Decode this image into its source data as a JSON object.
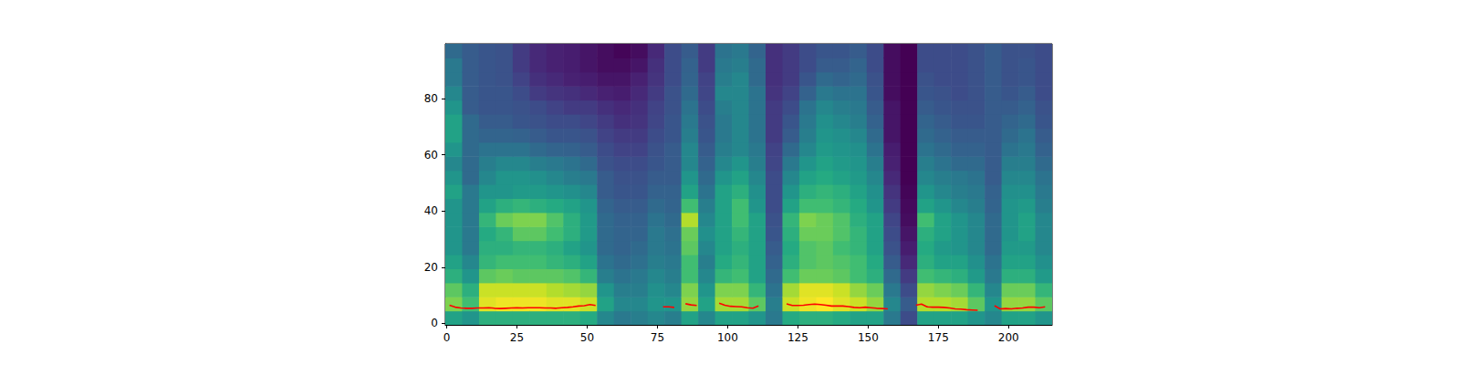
{
  "chart_data": {
    "type": "heatmap",
    "xlim": [
      -0.5,
      215.5
    ],
    "ylim": [
      -0.5,
      99.5
    ],
    "xticks": [
      0,
      25,
      50,
      75,
      100,
      125,
      150,
      175,
      200
    ],
    "yticks": [
      0,
      20,
      40,
      60,
      80
    ],
    "x_bins": [
      -0.5,
      5.5,
      11.5,
      17.5,
      23.5,
      29.5,
      35.5,
      41.5,
      47.5,
      53.5,
      59.5,
      65.5,
      71.5,
      77.5,
      83.5,
      89.5,
      95.5,
      101.5,
      107.5,
      113.5,
      119.5,
      125.5,
      131.5,
      137.5,
      143.5,
      149.5,
      155.5,
      161.5,
      167.5,
      173.5,
      179.5,
      185.5,
      191.5,
      197.5,
      203.5,
      209.5,
      215.5
    ],
    "y_bins": [
      -0.5,
      4.5,
      9.5,
      14.5,
      19.5,
      24.5,
      29.5,
      34.5,
      39.5,
      44.5,
      49.5,
      54.5,
      59.5,
      64.5,
      69.5,
      74.5,
      79.5,
      84.5,
      89.5,
      94.5,
      99.5
    ],
    "cells": [
      [
        0.55,
        0.75,
        0.7,
        0.6,
        0.55,
        0.5,
        0.5,
        0.5,
        0.5,
        0.55,
        0.5,
        0.45,
        0.5,
        0.55,
        0.55,
        0.5,
        0.45,
        0.4,
        0.4,
        0.35
      ],
      [
        0.5,
        0.65,
        0.6,
        0.5,
        0.45,
        0.4,
        0.4,
        0.4,
        0.4,
        0.4,
        0.35,
        0.35,
        0.35,
        0.35,
        0.35,
        0.3,
        0.3,
        0.3,
        0.3,
        0.3
      ],
      [
        0.6,
        0.88,
        0.85,
        0.7,
        0.62,
        0.6,
        0.58,
        0.62,
        0.55,
        0.5,
        0.45,
        0.42,
        0.38,
        0.33,
        0.3,
        0.28,
        0.28,
        0.28,
        0.28,
        0.28
      ],
      [
        0.6,
        0.9,
        0.85,
        0.72,
        0.65,
        0.6,
        0.62,
        0.72,
        0.6,
        0.5,
        0.5,
        0.45,
        0.38,
        0.33,
        0.3,
        0.28,
        0.28,
        0.27,
        0.27,
        0.27
      ],
      [
        0.6,
        0.9,
        0.85,
        0.7,
        0.65,
        0.62,
        0.7,
        0.75,
        0.62,
        0.52,
        0.5,
        0.45,
        0.38,
        0.32,
        0.28,
        0.27,
        0.25,
        0.22,
        0.2,
        0.2
      ],
      [
        0.6,
        0.9,
        0.85,
        0.7,
        0.65,
        0.62,
        0.7,
        0.75,
        0.6,
        0.52,
        0.48,
        0.42,
        0.35,
        0.3,
        0.27,
        0.25,
        0.2,
        0.17,
        0.15,
        0.15
      ],
      [
        0.6,
        0.88,
        0.82,
        0.7,
        0.62,
        0.6,
        0.65,
        0.68,
        0.58,
        0.5,
        0.45,
        0.4,
        0.33,
        0.28,
        0.25,
        0.22,
        0.18,
        0.15,
        0.13,
        0.13
      ],
      [
        0.6,
        0.88,
        0.8,
        0.68,
        0.6,
        0.55,
        0.6,
        0.6,
        0.55,
        0.48,
        0.42,
        0.38,
        0.32,
        0.28,
        0.25,
        0.2,
        0.17,
        0.13,
        0.12,
        0.12
      ],
      [
        0.58,
        0.85,
        0.78,
        0.62,
        0.55,
        0.5,
        0.52,
        0.52,
        0.5,
        0.45,
        0.4,
        0.35,
        0.3,
        0.27,
        0.23,
        0.2,
        0.15,
        0.12,
        0.1,
        0.1
      ],
      [
        0.45,
        0.55,
        0.5,
        0.42,
        0.38,
        0.35,
        0.35,
        0.35,
        0.33,
        0.3,
        0.3,
        0.27,
        0.25,
        0.22,
        0.2,
        0.17,
        0.13,
        0.1,
        0.08,
        0.08
      ],
      [
        0.4,
        0.45,
        0.42,
        0.38,
        0.35,
        0.33,
        0.33,
        0.32,
        0.3,
        0.28,
        0.27,
        0.25,
        0.22,
        0.2,
        0.17,
        0.15,
        0.12,
        0.1,
        0.08,
        0.06
      ],
      [
        0.42,
        0.45,
        0.42,
        0.4,
        0.37,
        0.35,
        0.33,
        0.32,
        0.3,
        0.28,
        0.27,
        0.25,
        0.22,
        0.2,
        0.18,
        0.17,
        0.15,
        0.13,
        0.1,
        0.08
      ],
      [
        0.45,
        0.5,
        0.48,
        0.45,
        0.42,
        0.4,
        0.4,
        0.38,
        0.35,
        0.32,
        0.3,
        0.28,
        0.27,
        0.25,
        0.23,
        0.22,
        0.2,
        0.18,
        0.17,
        0.15
      ],
      [
        0.42,
        0.5,
        0.45,
        0.42,
        0.4,
        0.38,
        0.37,
        0.35,
        0.33,
        0.32,
        0.3,
        0.3,
        0.3,
        0.28,
        0.28,
        0.27,
        0.27,
        0.25,
        0.25,
        0.25
      ],
      [
        0.55,
        0.78,
        0.75,
        0.65,
        0.65,
        0.7,
        0.72,
        0.82,
        0.65,
        0.55,
        0.5,
        0.45,
        0.45,
        0.42,
        0.4,
        0.38,
        0.35,
        0.33,
        0.32,
        0.3
      ],
      [
        0.45,
        0.55,
        0.5,
        0.45,
        0.42,
        0.45,
        0.48,
        0.45,
        0.42,
        0.38,
        0.35,
        0.32,
        0.3,
        0.28,
        0.27,
        0.25,
        0.23,
        0.22,
        0.2,
        0.2
      ],
      [
        0.55,
        0.8,
        0.75,
        0.62,
        0.58,
        0.55,
        0.55,
        0.55,
        0.55,
        0.55,
        0.5,
        0.45,
        0.42,
        0.4,
        0.4,
        0.42,
        0.45,
        0.42,
        0.4,
        0.38
      ],
      [
        0.55,
        0.8,
        0.75,
        0.65,
        0.62,
        0.6,
        0.62,
        0.65,
        0.65,
        0.6,
        0.55,
        0.5,
        0.45,
        0.45,
        0.45,
        0.45,
        0.45,
        0.45,
        0.42,
        0.4
      ],
      [
        0.5,
        0.7,
        0.62,
        0.55,
        0.55,
        0.55,
        0.55,
        0.55,
        0.5,
        0.48,
        0.45,
        0.42,
        0.4,
        0.38,
        0.38,
        0.38,
        0.38,
        0.35,
        0.35,
        0.33
      ],
      [
        0.4,
        0.42,
        0.38,
        0.35,
        0.32,
        0.3,
        0.28,
        0.27,
        0.25,
        0.25,
        0.25,
        0.23,
        0.22,
        0.2,
        0.2,
        0.2,
        0.18,
        0.17,
        0.17,
        0.17
      ],
      [
        0.58,
        0.85,
        0.8,
        0.65,
        0.6,
        0.58,
        0.6,
        0.62,
        0.55,
        0.5,
        0.45,
        0.4,
        0.35,
        0.3,
        0.28,
        0.25,
        0.22,
        0.2,
        0.2,
        0.2
      ],
      [
        0.6,
        0.9,
        0.88,
        0.72,
        0.68,
        0.68,
        0.72,
        0.75,
        0.65,
        0.6,
        0.55,
        0.5,
        0.45,
        0.42,
        0.4,
        0.38,
        0.32,
        0.28,
        0.25,
        0.25
      ],
      [
        0.6,
        0.92,
        0.88,
        0.72,
        0.7,
        0.7,
        0.72,
        0.72,
        0.65,
        0.62,
        0.58,
        0.55,
        0.52,
        0.5,
        0.48,
        0.45,
        0.4,
        0.35,
        0.3,
        0.28
      ],
      [
        0.58,
        0.88,
        0.85,
        0.7,
        0.68,
        0.65,
        0.68,
        0.68,
        0.62,
        0.6,
        0.55,
        0.52,
        0.5,
        0.48,
        0.45,
        0.42,
        0.38,
        0.33,
        0.3,
        0.28
      ],
      [
        0.55,
        0.85,
        0.78,
        0.65,
        0.65,
        0.62,
        0.62,
        0.6,
        0.58,
        0.55,
        0.52,
        0.5,
        0.48,
        0.45,
        0.42,
        0.4,
        0.38,
        0.35,
        0.33,
        0.3
      ],
      [
        0.55,
        0.78,
        0.72,
        0.6,
        0.58,
        0.55,
        0.55,
        0.55,
        0.5,
        0.48,
        0.45,
        0.42,
        0.38,
        0.35,
        0.32,
        0.3,
        0.28,
        0.27,
        0.25,
        0.25
      ],
      [
        0.4,
        0.45,
        0.4,
        0.35,
        0.3,
        0.27,
        0.25,
        0.23,
        0.2,
        0.18,
        0.15,
        0.13,
        0.12,
        0.1,
        0.1,
        0.1,
        0.08,
        0.08,
        0.08,
        0.08
      ],
      [
        0.25,
        0.3,
        0.25,
        0.2,
        0.15,
        0.12,
        0.1,
        0.08,
        0.07,
        0.06,
        0.05,
        0.05,
        0.05,
        0.05,
        0.05,
        0.05,
        0.05,
        0.05,
        0.05,
        0.05
      ],
      [
        0.55,
        0.82,
        0.78,
        0.65,
        0.6,
        0.58,
        0.6,
        0.65,
        0.55,
        0.5,
        0.45,
        0.42,
        0.38,
        0.35,
        0.33,
        0.3,
        0.28,
        0.27,
        0.25,
        0.25
      ],
      [
        0.55,
        0.82,
        0.75,
        0.62,
        0.55,
        0.52,
        0.55,
        0.55,
        0.5,
        0.45,
        0.42,
        0.38,
        0.35,
        0.32,
        0.3,
        0.28,
        0.27,
        0.25,
        0.25,
        0.25
      ],
      [
        0.55,
        0.8,
        0.72,
        0.6,
        0.55,
        0.5,
        0.5,
        0.5,
        0.45,
        0.42,
        0.4,
        0.35,
        0.32,
        0.3,
        0.28,
        0.27,
        0.25,
        0.25,
        0.25,
        0.25
      ],
      [
        0.5,
        0.7,
        0.62,
        0.52,
        0.48,
        0.45,
        0.45,
        0.45,
        0.42,
        0.4,
        0.38,
        0.35,
        0.32,
        0.3,
        0.28,
        0.27,
        0.27,
        0.27,
        0.27,
        0.27
      ],
      [
        0.45,
        0.5,
        0.45,
        0.4,
        0.38,
        0.35,
        0.35,
        0.35,
        0.33,
        0.32,
        0.3,
        0.3,
        0.3,
        0.3,
        0.3,
        0.3,
        0.3,
        0.3,
        0.3,
        0.3
      ],
      [
        0.55,
        0.78,
        0.72,
        0.6,
        0.55,
        0.52,
        0.5,
        0.5,
        0.5,
        0.48,
        0.45,
        0.42,
        0.38,
        0.35,
        0.33,
        0.3,
        0.28,
        0.27,
        0.27,
        0.27
      ],
      [
        0.55,
        0.78,
        0.72,
        0.6,
        0.55,
        0.52,
        0.55,
        0.55,
        0.52,
        0.48,
        0.45,
        0.42,
        0.4,
        0.38,
        0.35,
        0.32,
        0.3,
        0.28,
        0.28,
        0.27
      ],
      [
        0.5,
        0.7,
        0.62,
        0.52,
        0.48,
        0.45,
        0.45,
        0.45,
        0.42,
        0.4,
        0.38,
        0.35,
        0.32,
        0.3,
        0.28,
        0.27,
        0.25,
        0.25,
        0.25,
        0.25
      ]
    ],
    "series": [
      {
        "type": "line",
        "color": "red",
        "x": [
          1,
          3,
          5,
          7,
          9,
          11,
          13,
          15,
          17,
          19,
          21,
          23,
          25,
          27,
          29,
          31,
          33,
          35,
          37,
          39,
          41,
          43,
          45,
          47,
          49,
          51,
          53,
          55,
          57,
          59,
          61,
          63,
          65,
          67,
          69,
          71,
          73,
          75,
          77,
          79,
          81,
          83,
          85,
          87,
          89,
          91,
          93,
          95,
          97,
          99,
          101,
          103,
          105,
          107,
          109,
          111,
          113,
          115,
          117,
          119,
          121,
          123,
          125,
          127,
          129,
          131,
          133,
          135,
          137,
          139,
          141,
          143,
          145,
          147,
          149,
          151,
          153,
          155,
          157,
          159,
          161,
          163,
          165,
          167,
          169,
          171,
          173,
          175,
          177,
          179,
          181,
          183,
          185,
          187,
          189,
          191,
          193,
          195,
          197,
          199,
          201,
          203,
          205,
          207,
          209,
          211,
          213
        ],
        "values": [
          6.5,
          5.8,
          5.5,
          5.4,
          5.4,
          5.5,
          5.5,
          5.6,
          5.4,
          5.3,
          5.4,
          5.5,
          5.6,
          5.5,
          5.6,
          5.6,
          5.6,
          5.5,
          5.5,
          5.4,
          5.6,
          5.7,
          5.9,
          6.2,
          6.3,
          6.7,
          6.4,
          null,
          null,
          null,
          null,
          null,
          null,
          null,
          null,
          null,
          null,
          null,
          5.9,
          5.9,
          5.7,
          null,
          7.0,
          6.6,
          6.4,
          null,
          null,
          null,
          7.2,
          6.5,
          6.1,
          6.0,
          5.9,
          5.6,
          5.4,
          6.2,
          null,
          null,
          null,
          null,
          7.0,
          6.4,
          6.4,
          6.5,
          6.7,
          6.9,
          6.7,
          6.5,
          6.2,
          6.2,
          6.2,
          6.0,
          5.7,
          5.6,
          5.8,
          5.6,
          5.4,
          5.3,
          5.2,
          null,
          null,
          null,
          null,
          6.5,
          6.9,
          5.9,
          5.8,
          5.8,
          5.7,
          5.5,
          5.2,
          5.1,
          4.9,
          4.8,
          4.7,
          null,
          null,
          6.3,
          5.2,
          5.3,
          5.2,
          5.4,
          5.5,
          5.8,
          5.8,
          5.6,
          5.9
        ]
      }
    ]
  }
}
